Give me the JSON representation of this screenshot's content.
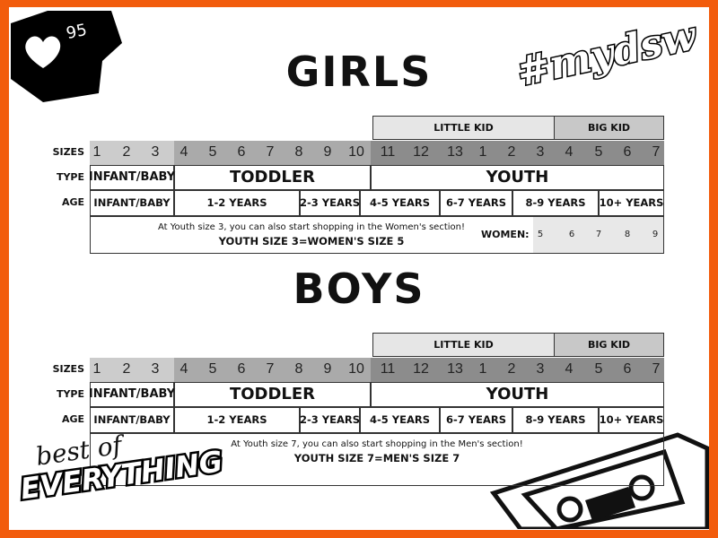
{
  "badge": {
    "likes": "95",
    "icon": "heart-icon"
  },
  "logo_top": "#mydsw",
  "logo_bottom": {
    "line1": "best of",
    "line2": "EVERYTHING"
  },
  "row_labels": {
    "sizes": "SIZES",
    "type": "TYPE",
    "age": "AGE"
  },
  "group_headers": {
    "little_kid": "LITTLE KID",
    "big_kid": "BIG KID"
  },
  "sizes": [
    "1",
    "2",
    "3",
    "4",
    "5",
    "6",
    "7",
    "8",
    "9",
    "10",
    "11",
    "12",
    "13",
    "1",
    "2",
    "3",
    "4",
    "5",
    "6",
    "7"
  ],
  "types": [
    "INFANT/BABY",
    "TODDLER",
    "YOUTH"
  ],
  "ages": [
    "INFANT/BABY",
    "1-2 YEARS",
    "2-3 YEARS",
    "4-5 YEARS",
    "6-7 YEARS",
    "8-9 YEARS",
    "10+ YEARS"
  ],
  "girls": {
    "title": "GIRLS",
    "note": "At Youth size 3, you can also start shopping in the Women's section!",
    "equivalence": "YOUTH SIZE 3=WOMEN'S SIZE 5",
    "women_label": "WOMEN:",
    "women_sizes": [
      "5",
      "6",
      "7",
      "8",
      "9"
    ]
  },
  "boys": {
    "title": "BOYS",
    "note": "At Youth size 7, you can also start shopping in the Men's section!",
    "equivalence": "YOUTH SIZE 7=MEN'S SIZE 7"
  },
  "colors": {
    "border": "#f25c0c",
    "infant": "#cccccc",
    "toddler": "#aaaaaa",
    "youth": "#8c8c8c",
    "little_kid": "#e6e6e6",
    "big_kid": "#c8c8c8",
    "women": "#e8e8e8"
  }
}
